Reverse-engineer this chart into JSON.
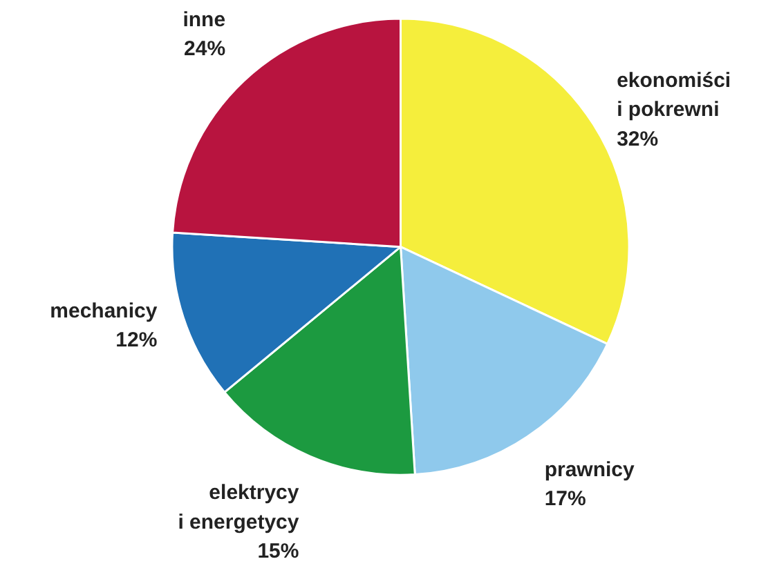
{
  "chart_data": {
    "type": "pie",
    "categories": [
      "ekonomiści\ni pokrewni",
      "prawnicy",
      "elektrycy\ni energetycy",
      "mechanicy",
      "inne"
    ],
    "values": [
      32,
      17,
      15,
      12,
      24
    ],
    "colors": [
      "#f5ee3c",
      "#8fc9ec",
      "#1c9a40",
      "#2071b6",
      "#b8143f"
    ],
    "value_labels": [
      "32%",
      "17%",
      "15%",
      "12%",
      "24%"
    ]
  }
}
